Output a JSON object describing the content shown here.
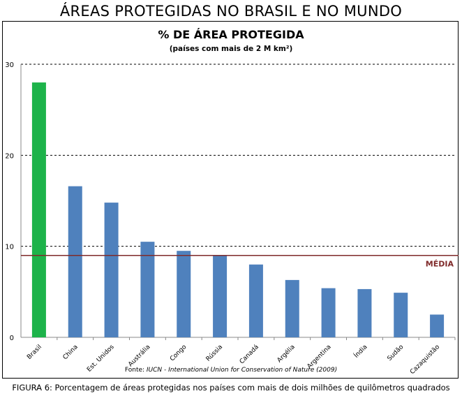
{
  "page_title": "ÁREAS PROTEGIDAS NO BRASIL E NO MUNDO",
  "source_prefix": "Fonte: ",
  "source_italic": "IUCN - International Union for Conservation of Nature (2009)",
  "caption": "FIGURA 6: Porcentagem de áreas protegidas nos países com mais de dois milhões de quilômetros quadrados",
  "chart_data": {
    "type": "bar",
    "title": "%  DE ÁREA PROTEGIDA",
    "subtitle": "(países com mais de 2 M km²)",
    "categories": [
      "Brasil",
      "China",
      "Est. Unidos",
      "Austrália",
      "Congo",
      "Rússia",
      "Canadá",
      "Argélia",
      "Argentina",
      "Índia",
      "Sudão",
      "Cazaquistão"
    ],
    "values": [
      28,
      16.6,
      14.8,
      10.5,
      9.5,
      9.0,
      8.0,
      6.3,
      5.4,
      5.3,
      4.9,
      2.5
    ],
    "ylim": [
      0,
      30
    ],
    "yticks": [
      0,
      10,
      20,
      30
    ],
    "grid": true,
    "reference_line": {
      "label": "MÉDIA",
      "value": 9.0,
      "color": "#7f2a2a"
    },
    "colors": {
      "highlight": "#1db34a",
      "default": "#4f81bd"
    },
    "highlight_index": 0
  }
}
